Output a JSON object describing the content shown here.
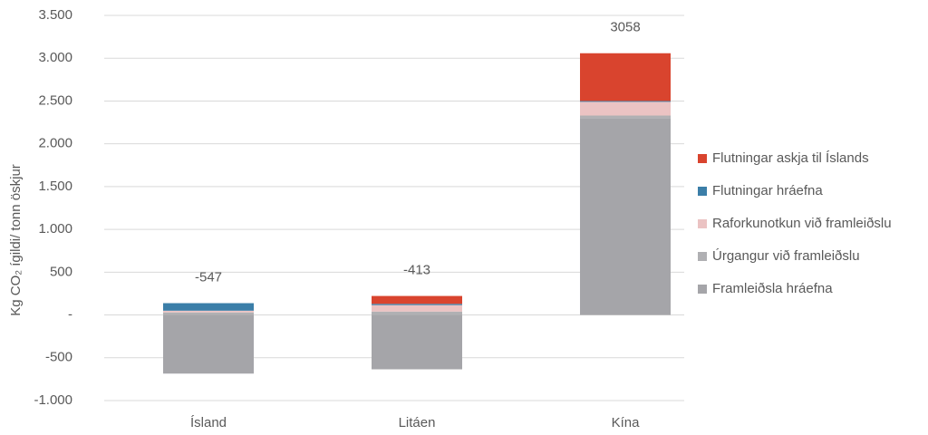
{
  "chart_data": {
    "type": "stacked_bar",
    "y_label": "Kg CO₂ ígildi/ tonn öskjur",
    "categories": [
      "Ísland",
      "Litáen",
      "Kína"
    ],
    "series": [
      {
        "name": "Framleiðsla hráefna",
        "color": "#a5a5a9",
        "values": [
          -685,
          -635,
          2300
        ]
      },
      {
        "name": "Úrgangur við framleiðslu",
        "color": "#b0b0b3",
        "values": [
          30,
          40,
          30
        ]
      },
      {
        "name": "Raforkunotkun við framleiðslu",
        "color": "#ebc3c3",
        "values": [
          20,
          75,
          160
        ]
      },
      {
        "name": "Flutningar hráefna",
        "color": "#3b7ea8",
        "values": [
          88,
          15,
          10
        ]
      },
      {
        "name": "Flutningar askja til Íslands",
        "color": "#d9442e",
        "values": [
          0,
          92,
          558
        ]
      }
    ],
    "totals": [
      -547,
      -413,
      3058
    ],
    "ylim": [
      -1000,
      3500
    ],
    "yticks": [
      {
        "value": -1000,
        "label": "-1.000"
      },
      -500,
      {
        "value": 0,
        "label": "-"
      },
      500,
      {
        "value": 1000,
        "label": "1.000"
      },
      {
        "value": 1500,
        "label": "1.500"
      },
      {
        "value": 2000,
        "label": "2.000"
      },
      {
        "value": 2500,
        "label": "2.500"
      },
      {
        "value": 3000,
        "label": "3.000"
      },
      {
        "value": 3500,
        "label": "3.500"
      }
    ],
    "grid": true,
    "legend": "right"
  }
}
